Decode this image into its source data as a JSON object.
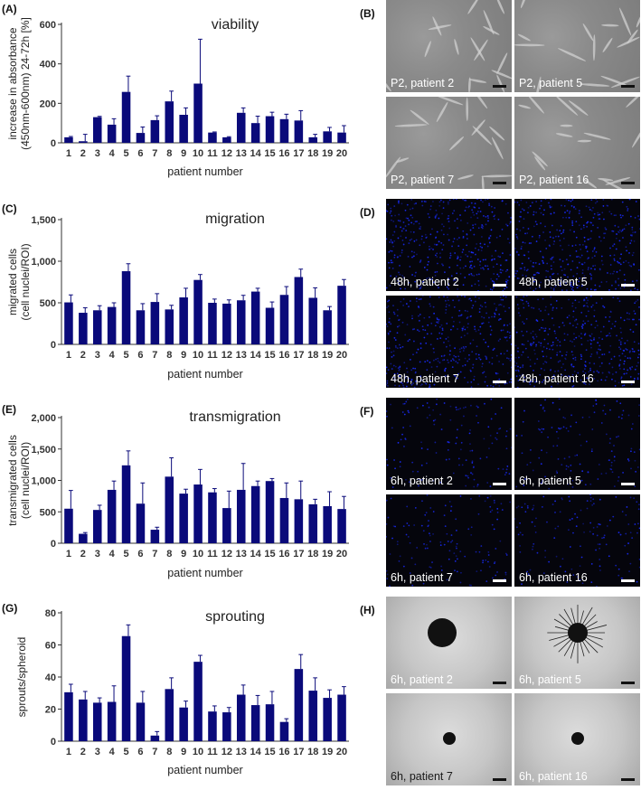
{
  "chart_data": [
    {
      "type": "bar",
      "panel": "(A)",
      "title": "viability",
      "xlabel": "patient number",
      "ylabel_lines": [
        "increase in absorbance",
        "(450nm-600nm) 24-72h [%]"
      ],
      "ylim": [
        0,
        600
      ],
      "yticks": [
        "0",
        "200",
        "400",
        "600"
      ],
      "ytick_values": [
        0,
        200,
        400,
        600
      ],
      "categories": [
        "1",
        "2",
        "3",
        "4",
        "5",
        "6",
        "7",
        "8",
        "9",
        "10",
        "11",
        "12",
        "13",
        "14",
        "15",
        "16",
        "17",
        "18",
        "19",
        "20"
      ],
      "values": [
        28,
        8,
        130,
        92,
        258,
        50,
        115,
        210,
        142,
        300,
        52,
        28,
        152,
        100,
        135,
        120,
        113,
        28,
        58,
        52
      ],
      "errors": [
        4,
        35,
        4,
        30,
        80,
        30,
        22,
        52,
        35,
        225,
        3,
        3,
        25,
        35,
        20,
        25,
        50,
        15,
        20,
        35
      ],
      "bar_color": "#0a0a7a",
      "grid": false
    },
    {
      "type": "bar",
      "panel": "(C)",
      "title": "migration",
      "xlabel": "patient number",
      "ylabel_lines": [
        "migrated cells",
        "(cell nuclei/ROI)"
      ],
      "ylim": [
        0,
        1500
      ],
      "yticks": [
        "0",
        "500",
        "1,000",
        "1,500"
      ],
      "ytick_values": [
        0,
        500,
        1000,
        1500
      ],
      "categories": [
        "1",
        "2",
        "3",
        "4",
        "5",
        "6",
        "7",
        "8",
        "9",
        "10",
        "11",
        "12",
        "13",
        "14",
        "15",
        "16",
        "17",
        "18",
        "19",
        "20"
      ],
      "values": [
        505,
        380,
        410,
        450,
        880,
        410,
        510,
        420,
        565,
        775,
        500,
        490,
        530,
        635,
        440,
        595,
        810,
        560,
        410,
        705
      ],
      "errors": [
        90,
        60,
        55,
        50,
        90,
        80,
        100,
        50,
        110,
        65,
        45,
        45,
        60,
        40,
        70,
        100,
        95,
        120,
        45,
        75
      ],
      "bar_color": "#0a0a7a",
      "grid": false
    },
    {
      "type": "bar",
      "panel": "(E)",
      "title": "transmigration",
      "xlabel": "patient number",
      "ylabel_lines": [
        "transmigrated cells",
        "(cell nuclei/ROI)"
      ],
      "ylim": [
        0,
        2000
      ],
      "yticks": [
        "0",
        "500",
        "1,000",
        "1,500",
        "2,000"
      ],
      "ytick_values": [
        0,
        500,
        1000,
        1500,
        2000
      ],
      "categories": [
        "1",
        "2",
        "3",
        "4",
        "5",
        "6",
        "7",
        "8",
        "9",
        "10",
        "11",
        "12",
        "13",
        "14",
        "15",
        "16",
        "17",
        "18",
        "19",
        "20"
      ],
      "values": [
        550,
        150,
        530,
        850,
        1240,
        630,
        215,
        1060,
        790,
        935,
        810,
        560,
        850,
        910,
        990,
        720,
        700,
        620,
        590,
        545
      ],
      "errors": [
        290,
        20,
        75,
        140,
        230,
        330,
        40,
        300,
        70,
        240,
        60,
        270,
        420,
        80,
        40,
        240,
        290,
        80,
        230,
        200
      ],
      "bar_color": "#0a0a7a",
      "grid": false
    },
    {
      "type": "bar",
      "panel": "(G)",
      "title": "sprouting",
      "xlabel": "patient number",
      "ylabel_lines": [
        "sprouts/spheroid"
      ],
      "ylim": [
        0,
        80
      ],
      "yticks": [
        "0",
        "20",
        "40",
        "60",
        "80"
      ],
      "ytick_values": [
        0,
        20,
        40,
        60,
        80
      ],
      "categories": [
        "1",
        "2",
        "3",
        "4",
        "5",
        "6",
        "7",
        "8",
        "9",
        "10",
        "11",
        "12",
        "13",
        "14",
        "15",
        "16",
        "17",
        "18",
        "19",
        "20"
      ],
      "values": [
        30.5,
        26,
        24,
        24.5,
        65.5,
        24,
        3.5,
        32.5,
        21,
        49.5,
        18.5,
        18,
        29,
        22.5,
        23,
        12,
        45,
        31.5,
        27,
        29
      ],
      "errors": [
        5,
        5,
        3,
        10,
        7,
        7,
        2.5,
        7,
        4,
        4,
        3.5,
        3,
        6,
        6,
        8,
        2,
        9,
        8,
        5,
        5
      ],
      "bar_color": "#0a0a7a",
      "grid": false
    }
  ],
  "image_panels": [
    {
      "panel": "(B)",
      "style": "phase",
      "captions": [
        "P2, patient 2",
        "P2, patient 5",
        "P2, patient 7",
        "P2, patient 16"
      ]
    },
    {
      "panel": "(D)",
      "style": "dapi",
      "captions": [
        "48h, patient 2",
        "48h, patient 5",
        "48h, patient 7",
        "48h, patient 16"
      ]
    },
    {
      "panel": "(F)",
      "style": "dapi-sparse",
      "captions": [
        "6h, patient 2",
        "6h, patient 5",
        "6h, patient 7",
        "6h, patient 16"
      ]
    },
    {
      "panel": "(H)",
      "style": "sprout",
      "captions": [
        "6h, patient 2",
        "6h, patient 5",
        "6h, patient 7",
        "6h, patient 16"
      ]
    }
  ],
  "colors": {
    "bar": "#0a0a7a",
    "dapi_nuclei": "#1a2cff",
    "text": "#222222"
  }
}
